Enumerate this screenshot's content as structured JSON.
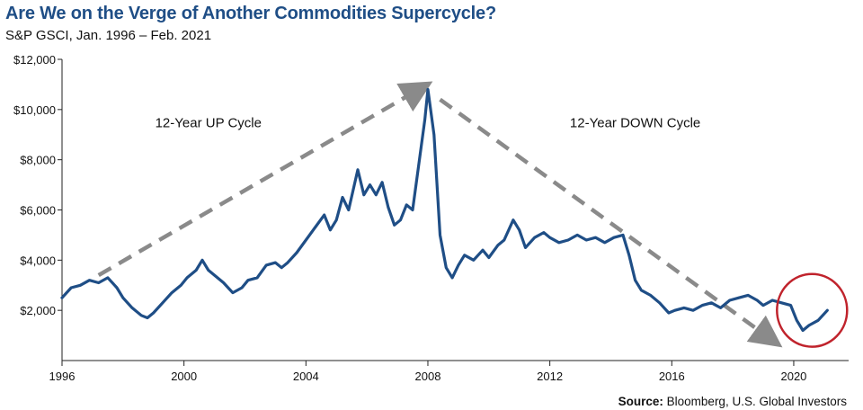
{
  "chart_data": {
    "type": "line",
    "title": "Are We on the Verge of Another Commodities Supercycle?",
    "subtitle": "S&P GSCI, Jan. 1996 – Feb. 2021",
    "source_label": "Source:",
    "source_text": " Bloomberg, U.S. Global Investors",
    "xlabel": "",
    "ylabel": "",
    "xlim": [
      1996,
      2021.8
    ],
    "ylim": [
      0,
      12000
    ],
    "x_ticks": [
      1996,
      2000,
      2004,
      2008,
      2012,
      2016,
      2020
    ],
    "x_tick_labels": [
      "1996",
      "2000",
      "2004",
      "2008",
      "2012",
      "2016",
      "2020"
    ],
    "y_ticks": [
      2000,
      4000,
      6000,
      8000,
      10000,
      12000
    ],
    "y_tick_labels": [
      "$2,000",
      "$4,000",
      "$6,000",
      "$8,000",
      "$10,000",
      "$12,000"
    ],
    "annotations": [
      {
        "text": "12-Year UP Cycle",
        "x": 2000.8,
        "y": 9300
      },
      {
        "text": "12-Year DOWN Cycle",
        "x": 2014.8,
        "y": 9300
      }
    ],
    "trend_arrows": [
      {
        "name": "up-cycle",
        "from": [
          1997.2,
          3400
        ],
        "to": [
          2007.7,
          10800
        ]
      },
      {
        "name": "down-cycle",
        "from": [
          2008.4,
          10400
        ],
        "to": [
          2019.2,
          900
        ]
      }
    ],
    "highlight_circle": {
      "cx": 2020.6,
      "cy": 2000,
      "rx_years": 1.15,
      "ry_value": 1450,
      "color": "#c0232c"
    },
    "colors": {
      "line": "#1f4e86",
      "arrow": "#8a8a8a",
      "title": "#1f4e86"
    },
    "series": [
      {
        "name": "S&P GSCI",
        "x": [
          1996.0,
          1996.3,
          1996.6,
          1996.9,
          1997.2,
          1997.5,
          1997.8,
          1998.0,
          1998.3,
          1998.6,
          1998.8,
          1999.0,
          1999.3,
          1999.6,
          1999.9,
          2000.1,
          2000.4,
          2000.6,
          2000.8,
          2001.0,
          2001.3,
          2001.6,
          2001.9,
          2002.1,
          2002.4,
          2002.7,
          2003.0,
          2003.2,
          2003.4,
          2003.7,
          2004.0,
          2004.3,
          2004.6,
          2004.8,
          2005.0,
          2005.2,
          2005.4,
          2005.7,
          2005.9,
          2006.1,
          2006.3,
          2006.5,
          2006.7,
          2006.9,
          2007.1,
          2007.3,
          2007.5,
          2007.7,
          2007.9,
          2008.0,
          2008.2,
          2008.4,
          2008.6,
          2008.8,
          2009.0,
          2009.2,
          2009.5,
          2009.8,
          2010.0,
          2010.3,
          2010.5,
          2010.8,
          2011.0,
          2011.2,
          2011.5,
          2011.8,
          2012.0,
          2012.3,
          2012.6,
          2012.9,
          2013.2,
          2013.5,
          2013.8,
          2014.1,
          2014.4,
          2014.6,
          2014.8,
          2015.0,
          2015.3,
          2015.6,
          2015.9,
          2016.1,
          2016.4,
          2016.7,
          2017.0,
          2017.3,
          2017.6,
          2017.9,
          2018.2,
          2018.5,
          2018.8,
          2019.0,
          2019.3,
          2019.6,
          2019.9,
          2020.1,
          2020.3,
          2020.5,
          2020.8,
          2021.1
        ],
        "values": [
          2500,
          2900,
          3000,
          3200,
          3100,
          3300,
          2900,
          2500,
          2100,
          1800,
          1700,
          1900,
          2300,
          2700,
          3000,
          3300,
          3600,
          4000,
          3600,
          3400,
          3100,
          2700,
          2900,
          3200,
          3300,
          3800,
          3900,
          3700,
          3900,
          4300,
          4800,
          5300,
          5800,
          5200,
          5600,
          6500,
          6000,
          7600,
          6600,
          7000,
          6600,
          7100,
          6100,
          5400,
          5600,
          6200,
          6000,
          7800,
          9600,
          10800,
          9000,
          5000,
          3700,
          3300,
          3800,
          4200,
          4000,
          4400,
          4100,
          4600,
          4800,
          5600,
          5200,
          4500,
          4900,
          5100,
          4900,
          4700,
          4800,
          5000,
          4800,
          4900,
          4700,
          4900,
          5000,
          4200,
          3200,
          2800,
          2600,
          2300,
          1900,
          2000,
          2100,
          2000,
          2200,
          2300,
          2100,
          2400,
          2500,
          2600,
          2400,
          2200,
          2400,
          2300,
          2200,
          1600,
          1200,
          1400,
          1600,
          2000
        ]
      }
    ]
  }
}
